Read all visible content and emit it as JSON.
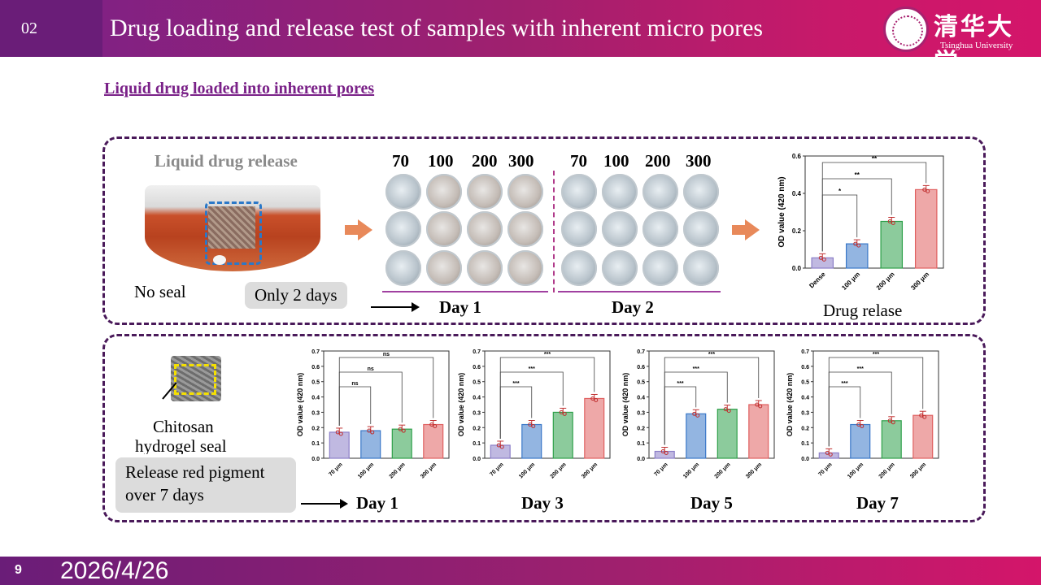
{
  "header": {
    "section_number": "02",
    "title": "Drug loading and release test of samples with inherent micro pores",
    "logo_cn": "清华大学",
    "logo_en": "Tsinghua University"
  },
  "subtitle": "Liquid drug loaded into inherent pores",
  "panel1": {
    "photo_caption": "Liquid drug release",
    "no_seal": "No seal",
    "callout": "Only 2 days",
    "day1_cols": [
      "70",
      "100",
      "200",
      "300"
    ],
    "day2_cols": [
      "70",
      "100",
      "200",
      "300"
    ],
    "day1_label": "Day 1",
    "day2_label": "Day 2",
    "chart_caption": "Drug relase"
  },
  "panel2": {
    "hydrogel_label_1": "Chitosan",
    "hydrogel_label_2": "hydrogel seal",
    "callout_1": "Release red pigment",
    "callout_2": "over 7 days",
    "day_labels": [
      "Day 1",
      "Day 3",
      "Day 5",
      "Day 7"
    ]
  },
  "chart_data": [
    {
      "type": "bar",
      "categories": [
        "Dense",
        "100 μm",
        "200 μm",
        "300 μm"
      ],
      "values": [
        0.055,
        0.13,
        0.25,
        0.42
      ],
      "ylabel": "OD value (420 nm)",
      "ylim": [
        0,
        0.6
      ],
      "yticks": [
        "0.0",
        "0.2",
        "0.4",
        "0.6"
      ],
      "significance": [
        "*",
        "**",
        "**"
      ],
      "colors": [
        "#8c7fc8",
        "#3a78c8",
        "#2ea04a",
        "#e06060"
      ]
    },
    {
      "type": "bar",
      "categories": [
        "70 μm",
        "100 μm",
        "200 μm",
        "300 μm"
      ],
      "values": [
        0.17,
        0.18,
        0.19,
        0.22
      ],
      "ylabel": "OD value (420 nm)",
      "ylim": [
        0,
        0.7
      ],
      "yticks": [
        "0.0",
        "0.1",
        "0.2",
        "0.3",
        "0.4",
        "0.5",
        "0.6",
        "0.7"
      ],
      "significance": [
        "ns",
        "ns",
        "ns"
      ],
      "colors": [
        "#8c7fc8",
        "#3a78c8",
        "#2ea04a",
        "#e06060"
      ]
    },
    {
      "type": "bar",
      "categories": [
        "70 μm",
        "100 μm",
        "200 μm",
        "300 μm"
      ],
      "values": [
        0.085,
        0.22,
        0.3,
        0.39
      ],
      "ylabel": "OD value (420 nm)",
      "ylim": [
        0,
        0.7
      ],
      "yticks": [
        "0.0",
        "0.1",
        "0.2",
        "0.3",
        "0.4",
        "0.5",
        "0.6",
        "0.7"
      ],
      "significance": [
        "***",
        "***",
        "***"
      ],
      "colors": [
        "#8c7fc8",
        "#3a78c8",
        "#2ea04a",
        "#e06060"
      ]
    },
    {
      "type": "bar",
      "categories": [
        "70 μm",
        "100 μm",
        "200 μm",
        "300 μm"
      ],
      "values": [
        0.045,
        0.29,
        0.32,
        0.35
      ],
      "ylabel": "OD value (420 nm)",
      "ylim": [
        0,
        0.7
      ],
      "yticks": [
        "0.0",
        "0.1",
        "0.2",
        "0.3",
        "0.4",
        "0.5",
        "0.6",
        "0.7"
      ],
      "significance": [
        "***",
        "***",
        "***"
      ],
      "colors": [
        "#8c7fc8",
        "#3a78c8",
        "#2ea04a",
        "#e06060"
      ]
    },
    {
      "type": "bar",
      "categories": [
        "70 μm",
        "100 μm",
        "200 μm",
        "300 μm"
      ],
      "values": [
        0.035,
        0.22,
        0.245,
        0.28
      ],
      "ylabel": "OD value (420 nm)",
      "ylim": [
        0,
        0.7
      ],
      "yticks": [
        "0.0",
        "0.1",
        "0.2",
        "0.3",
        "0.4",
        "0.5",
        "0.6",
        "0.7"
      ],
      "significance": [
        "***",
        "***",
        "***"
      ],
      "colors": [
        "#8c7fc8",
        "#3a78c8",
        "#2ea04a",
        "#e06060"
      ]
    }
  ],
  "footer": {
    "page_number": "9",
    "date": "2026/4/26"
  }
}
